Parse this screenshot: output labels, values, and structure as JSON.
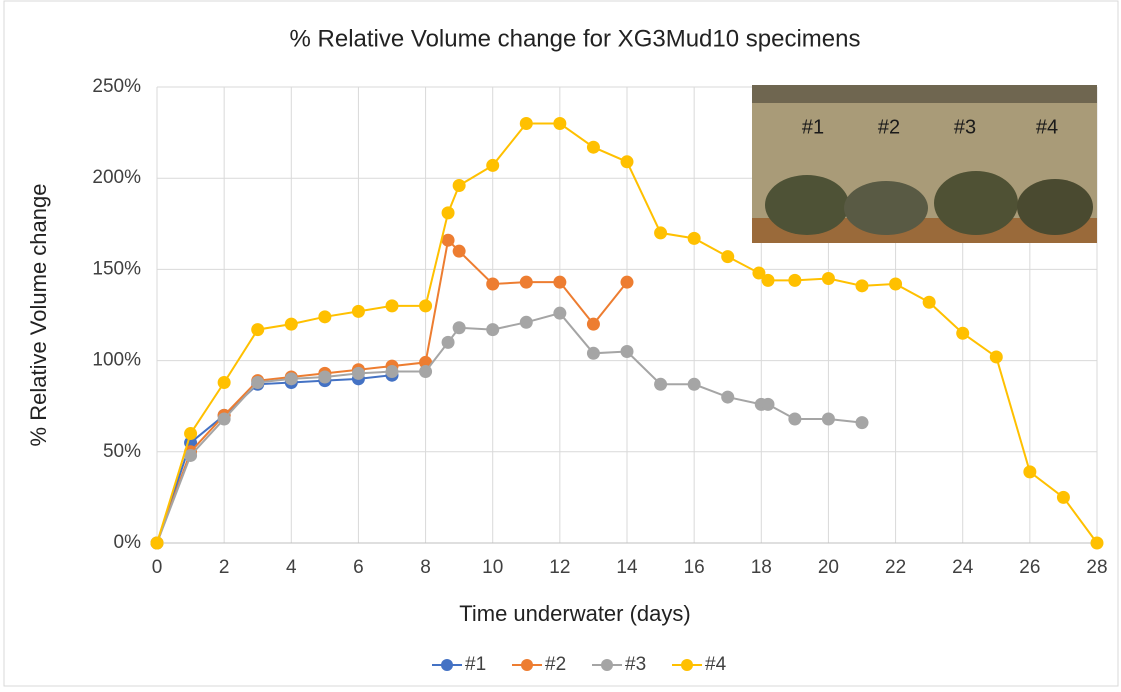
{
  "chart_data": {
    "type": "line",
    "title": "% Relative Volume change for XG3Mud10 specimens",
    "x_label": "Time underwater (days)",
    "y_label": "% Relative Volume change",
    "xlim": [
      0,
      28
    ],
    "xticks": [
      0,
      2,
      4,
      6,
      8,
      10,
      12,
      14,
      16,
      18,
      20,
      22,
      24,
      26,
      28
    ],
    "ylim": [
      0,
      250
    ],
    "yticks": [
      {
        "value": 0,
        "label": "0%"
      },
      {
        "value": 50,
        "label": "50%"
      },
      {
        "value": 100,
        "label": "100%"
      },
      {
        "value": 150,
        "label": "150%"
      },
      {
        "value": 200,
        "label": "200%"
      },
      {
        "value": 250,
        "label": "250%"
      }
    ],
    "grid": true,
    "legend": "bottom",
    "series": [
      {
        "name": "#1",
        "color": "#4472c4",
        "x": [
          0,
          1,
          2,
          3,
          4,
          5,
          6,
          7
        ],
        "values": [
          0,
          55,
          70,
          87,
          88,
          89,
          90,
          92
        ]
      },
      {
        "name": "#2",
        "color": "#ed7d31",
        "x": [
          0,
          1,
          2,
          3,
          4,
          5,
          6,
          7,
          8,
          8.67,
          9,
          10,
          11,
          12,
          13,
          14
        ],
        "values": [
          0,
          50,
          70,
          89,
          91,
          93,
          95,
          97,
          99,
          166,
          160,
          142,
          143,
          143,
          120,
          143
        ]
      },
      {
        "name": "#3",
        "color": "#a5a5a5",
        "x": [
          0,
          1,
          2,
          3,
          4,
          5,
          6,
          7,
          8,
          8.67,
          9,
          10,
          11,
          12,
          13,
          14,
          15,
          16,
          17,
          18,
          18.2,
          19,
          20,
          21
        ],
        "values": [
          0,
          48,
          68,
          88,
          90,
          91,
          93,
          94,
          94,
          110,
          118,
          117,
          121,
          126,
          104,
          105,
          87,
          87,
          80,
          76,
          76,
          68,
          68,
          66
        ]
      },
      {
        "name": "#4",
        "color": "#ffc000",
        "x": [
          0,
          1,
          2,
          3,
          4,
          5,
          6,
          7,
          8,
          8.67,
          9,
          10,
          11,
          12,
          13,
          14,
          15,
          16,
          17,
          17.93,
          18.2,
          19,
          20,
          21,
          22,
          23,
          24,
          25,
          26,
          27,
          28
        ],
        "values": [
          0,
          60,
          88,
          117,
          120,
          124,
          127,
          130,
          130,
          181,
          196,
          207,
          230,
          230,
          217,
          209,
          170,
          167,
          157,
          148,
          144,
          144,
          145,
          141,
          142,
          132,
          115,
          102,
          39,
          25,
          0
        ]
      }
    ],
    "inset_labels": [
      "#1",
      "#2",
      "#3",
      "#4"
    ]
  }
}
